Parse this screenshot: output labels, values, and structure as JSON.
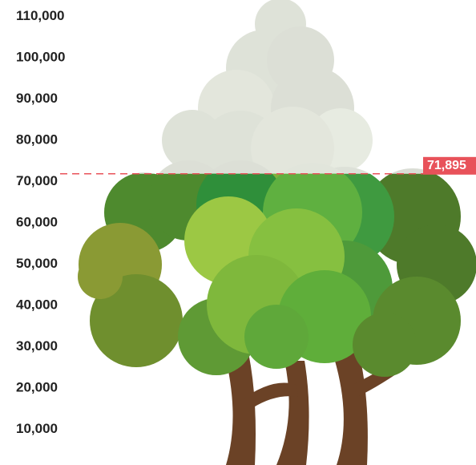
{
  "chart_data": {
    "type": "pictorial",
    "value": 71895,
    "value_label": "71,895",
    "ylim": [
      0,
      114000
    ],
    "yticks": [
      {
        "value": 110000,
        "label": "110,000"
      },
      {
        "value": 100000,
        "label": "100,000"
      },
      {
        "value": 90000,
        "label": "90,000"
      },
      {
        "value": 80000,
        "label": "80,000"
      },
      {
        "value": 70000,
        "label": "70,000"
      },
      {
        "value": 60000,
        "label": "60,000"
      },
      {
        "value": 50000,
        "label": "50,000"
      },
      {
        "value": 40000,
        "label": "40,000"
      },
      {
        "value": 30000,
        "label": "30,000"
      },
      {
        "value": 20000,
        "label": "20,000"
      },
      {
        "value": 10000,
        "label": "10,000"
      }
    ],
    "color": "#e8525a"
  }
}
